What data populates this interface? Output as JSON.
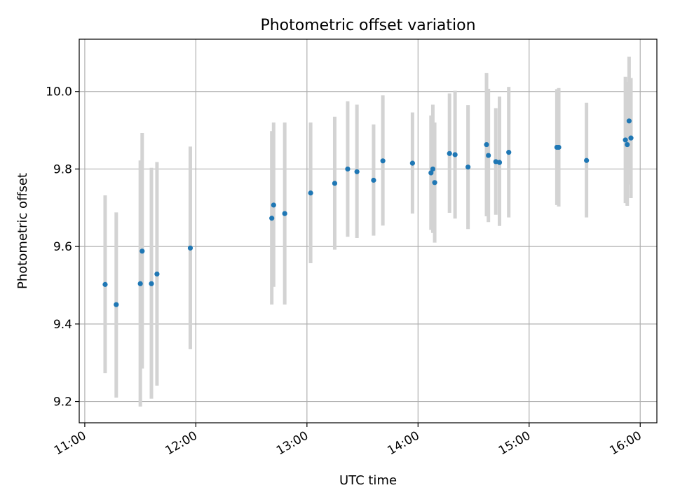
{
  "chart_data": {
    "type": "scatter",
    "title": "Photometric offset variation",
    "xlabel": "UTC time",
    "ylabel": "Photometric offset",
    "x_unit": "UTC hour of day",
    "xlim": [
      "10:57",
      "16:09"
    ],
    "ylim": [
      9.145,
      10.135
    ],
    "x_ticks": [
      "11:00",
      "12:00",
      "13:00",
      "14:00",
      "15:00",
      "16:00"
    ],
    "y_ticks": [
      9.2,
      9.4,
      9.6,
      9.8,
      10.0
    ],
    "y_tick_labels": [
      "9.2",
      "9.4",
      "9.6",
      "9.8",
      "10.0"
    ],
    "grid": true,
    "point_color": "#1f77b4",
    "errorbar_color": "#d3d3d3",
    "points": [
      {
        "t": "11:11",
        "y": 9.502,
        "lo": 9.273,
        "hi": 9.732
      },
      {
        "t": "11:17",
        "y": 9.45,
        "lo": 9.21,
        "hi": 9.688
      },
      {
        "t": "11:30",
        "y": 9.504,
        "lo": 9.187,
        "hi": 9.822
      },
      {
        "t": "11:31",
        "y": 9.588,
        "lo": 9.285,
        "hi": 9.893
      },
      {
        "t": "11:36",
        "y": 9.504,
        "lo": 9.207,
        "hi": 9.803
      },
      {
        "t": "11:39",
        "y": 9.529,
        "lo": 9.241,
        "hi": 9.818
      },
      {
        "t": "11:57",
        "y": 9.596,
        "lo": 9.335,
        "hi": 9.858
      },
      {
        "t": "12:41",
        "y": 9.673,
        "lo": 9.45,
        "hi": 9.898
      },
      {
        "t": "12:42",
        "y": 9.707,
        "lo": 9.496,
        "hi": 9.92
      },
      {
        "t": "12:48",
        "y": 9.685,
        "lo": 9.45,
        "hi": 9.92
      },
      {
        "t": "13:02",
        "y": 9.738,
        "lo": 9.557,
        "hi": 9.92
      },
      {
        "t": "13:15",
        "y": 9.763,
        "lo": 9.592,
        "hi": 9.935
      },
      {
        "t": "13:22",
        "y": 9.8,
        "lo": 9.625,
        "hi": 9.975
      },
      {
        "t": "13:27",
        "y": 9.793,
        "lo": 9.622,
        "hi": 9.966
      },
      {
        "t": "13:36",
        "y": 9.771,
        "lo": 9.628,
        "hi": 9.915
      },
      {
        "t": "13:41",
        "y": 9.821,
        "lo": 9.654,
        "hi": 9.99
      },
      {
        "t": "13:57",
        "y": 9.815,
        "lo": 9.685,
        "hi": 9.946
      },
      {
        "t": "14:07",
        "y": 9.79,
        "lo": 9.643,
        "hi": 9.938
      },
      {
        "t": "14:08",
        "y": 9.8,
        "lo": 9.635,
        "hi": 9.966
      },
      {
        "t": "14:09",
        "y": 9.765,
        "lo": 9.61,
        "hi": 9.92
      },
      {
        "t": "14:17",
        "y": 9.84,
        "lo": 9.687,
        "hi": 9.995
      },
      {
        "t": "14:20",
        "y": 9.837,
        "lo": 9.672,
        "hi": 10.002
      },
      {
        "t": "14:27",
        "y": 9.805,
        "lo": 9.645,
        "hi": 9.965
      },
      {
        "t": "14:37",
        "y": 9.863,
        "lo": 9.678,
        "hi": 10.048
      },
      {
        "t": "14:38",
        "y": 9.835,
        "lo": 9.663,
        "hi": 10.007
      },
      {
        "t": "14:42",
        "y": 9.819,
        "lo": 9.682,
        "hi": 9.957
      },
      {
        "t": "14:44",
        "y": 9.817,
        "lo": 9.653,
        "hi": 9.987
      },
      {
        "t": "14:49",
        "y": 9.843,
        "lo": 9.675,
        "hi": 10.012
      },
      {
        "t": "15:15",
        "y": 9.856,
        "lo": 9.707,
        "hi": 10.006
      },
      {
        "t": "15:16",
        "y": 9.856,
        "lo": 9.703,
        "hi": 10.009
      },
      {
        "t": "15:31",
        "y": 9.822,
        "lo": 9.675,
        "hi": 9.971
      },
      {
        "t": "15:52",
        "y": 9.875,
        "lo": 9.712,
        "hi": 10.038
      },
      {
        "t": "15:53",
        "y": 9.863,
        "lo": 9.705,
        "hi": 10.025
      },
      {
        "t": "15:54",
        "y": 9.924,
        "lo": 9.76,
        "hi": 10.09
      },
      {
        "t": "15:55",
        "y": 9.88,
        "lo": 9.725,
        "hi": 10.035
      }
    ]
  }
}
